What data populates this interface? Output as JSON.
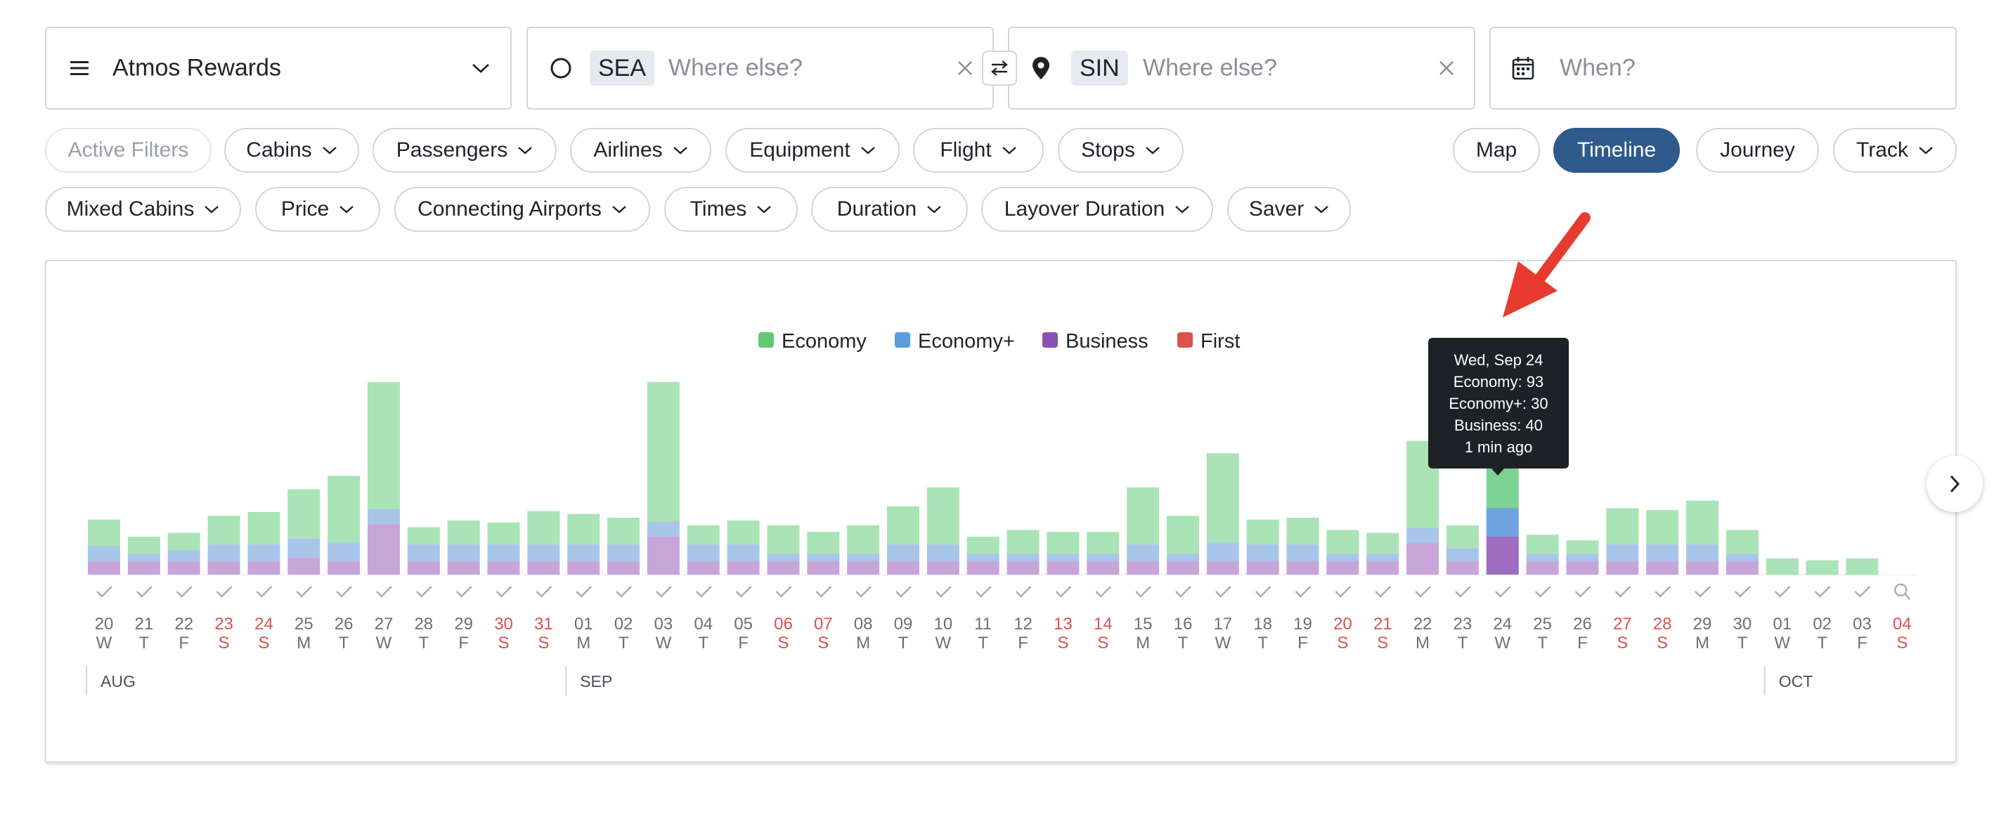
{
  "search": {
    "program": "Atmos Rewards",
    "origin_code": "SEA",
    "origin_placeholder": "Where else?",
    "destination_code": "SIN",
    "destination_placeholder": "Where else?",
    "date_placeholder": "When?"
  },
  "filters": {
    "row1": [
      "Active Filters",
      "Cabins",
      "Passengers",
      "Airlines",
      "Equipment",
      "Flight",
      "Stops"
    ],
    "row2": [
      "Mixed Cabins",
      "Price",
      "Connecting Airports",
      "Times",
      "Duration",
      "Layover Duration",
      "Saver"
    ]
  },
  "view_toggle": {
    "items": [
      "Map",
      "Timeline",
      "Journey",
      "Track"
    ],
    "active": "Timeline"
  },
  "legend": [
    "Economy",
    "Economy+",
    "Business",
    "First"
  ],
  "colors": {
    "economy": "#a9e3b6",
    "economy_plus": "#a8c6ea",
    "business": "#c8a5d9",
    "economy_active": "#7dd392",
    "economy_plus_active": "#6fa2e0",
    "business_active": "#9e6cc0",
    "legend_economy": "#5fc978",
    "legend_economy_plus": "#5b9be0",
    "legend_business": "#8e4fb3",
    "legend_first": "#d9534f",
    "weekend": "#d9534f",
    "accent": "#2f5a8c",
    "arrow": "#e63b2e"
  },
  "tooltip": {
    "date": "Wed, Sep 24",
    "economy": "Economy: 93",
    "economy_plus": "Economy+: 30",
    "business": "Business: 40",
    "updated": "1 min ago"
  },
  "chart_data": {
    "type": "bar",
    "stacked": true,
    "x": [
      "20",
      "21",
      "22",
      "23",
      "24",
      "25",
      "26",
      "27",
      "28",
      "29",
      "30",
      "31",
      "01",
      "02",
      "03",
      "04",
      "05",
      "06",
      "07",
      "08",
      "09",
      "10",
      "11",
      "12",
      "13",
      "14",
      "15",
      "16",
      "17",
      "18",
      "19",
      "20",
      "21",
      "22",
      "23",
      "24",
      "25",
      "26",
      "27",
      "28",
      "29",
      "30",
      "01",
      "02",
      "03",
      "04"
    ],
    "weekday": [
      "W",
      "T",
      "F",
      "S",
      "S",
      "M",
      "T",
      "W",
      "T",
      "F",
      "S",
      "S",
      "M",
      "T",
      "W",
      "T",
      "F",
      "S",
      "S",
      "M",
      "T",
      "W",
      "T",
      "F",
      "S",
      "S",
      "M",
      "T",
      "W",
      "T",
      "F",
      "S",
      "S",
      "M",
      "T",
      "W",
      "T",
      "F",
      "S",
      "S",
      "M",
      "T",
      "W",
      "T",
      "F",
      "S"
    ],
    "months": [
      {
        "label": "AUG",
        "start_index": 0
      },
      {
        "label": "SEP",
        "start_index": 12
      },
      {
        "label": "OCT",
        "start_index": 42
      }
    ],
    "series": [
      {
        "name": "Business",
        "values": [
          14,
          14,
          14,
          14,
          14,
          18,
          14,
          53,
          14,
          14,
          14,
          14,
          14,
          14,
          40,
          14,
          14,
          14,
          14,
          14,
          14,
          14,
          14,
          14,
          14,
          14,
          14,
          14,
          14,
          14,
          14,
          14,
          14,
          33,
          14,
          40,
          14,
          14,
          14,
          14,
          14,
          14,
          0,
          0,
          0,
          0
        ]
      },
      {
        "name": "Economy+",
        "values": [
          16,
          8,
          12,
          18,
          18,
          20,
          20,
          16,
          18,
          18,
          18,
          18,
          18,
          18,
          16,
          18,
          18,
          8,
          8,
          8,
          18,
          18,
          8,
          8,
          8,
          8,
          18,
          8,
          20,
          18,
          18,
          8,
          8,
          16,
          14,
          30,
          8,
          8,
          18,
          18,
          18,
          8,
          0,
          0,
          0,
          0
        ]
      },
      {
        "name": "Economy",
        "values": [
          28,
          18,
          18,
          30,
          34,
          52,
          70,
          134,
          18,
          25,
          23,
          35,
          32,
          28,
          147,
          20,
          25,
          30,
          23,
          30,
          40,
          60,
          18,
          25,
          23,
          23,
          60,
          40,
          94,
          26,
          28,
          25,
          22,
          92,
          24,
          93,
          20,
          14,
          38,
          36,
          46,
          25,
          17,
          15,
          17,
          0
        ]
      },
      {
        "name": "First",
        "values": [
          0,
          0,
          0,
          0,
          0,
          0,
          0,
          0,
          0,
          0,
          0,
          0,
          0,
          0,
          0,
          0,
          0,
          0,
          0,
          0,
          0,
          0,
          0,
          0,
          0,
          0,
          0,
          0,
          0,
          0,
          0,
          0,
          0,
          0,
          0,
          0,
          0,
          0,
          0,
          0,
          0,
          0,
          0,
          0,
          0,
          0
        ]
      }
    ],
    "highlight_index": 35,
    "available": [
      true,
      true,
      true,
      true,
      true,
      true,
      true,
      true,
      true,
      true,
      true,
      true,
      true,
      true,
      true,
      true,
      true,
      true,
      true,
      true,
      true,
      true,
      true,
      true,
      true,
      true,
      true,
      true,
      true,
      true,
      true,
      true,
      true,
      true,
      true,
      true,
      true,
      true,
      true,
      true,
      true,
      true,
      true,
      true,
      true,
      false
    ]
  }
}
